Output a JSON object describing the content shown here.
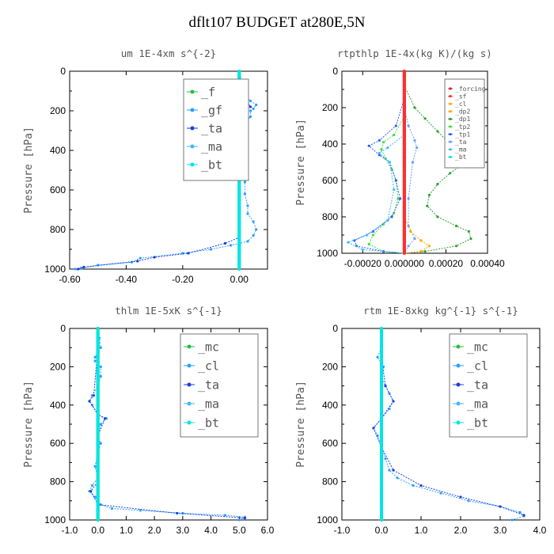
{
  "title": "dflt107  BUDGET at280E,5N",
  "chart_data": [
    {
      "type": "line",
      "title": "um  1E-4xm s^{-2}",
      "ylabel": "Pressure [hPa]",
      "xlim": [
        -0.6,
        0.1
      ],
      "ylim": [
        1000,
        0
      ],
      "xticks": [
        -0.6,
        -0.4,
        -0.2,
        0.0
      ],
      "xtick_labels": [
        "-0.60",
        "-0.40",
        "-0.20",
        "0.00"
      ],
      "yticks": [
        0,
        200,
        400,
        600,
        800,
        1000
      ],
      "ytick_labels": [
        "0",
        "200",
        "400",
        "600",
        "800",
        "1000"
      ],
      "legend": [
        "_f",
        "_gf",
        "_ta",
        "_ma",
        "_bt"
      ],
      "legend_size": "large",
      "series": [
        {
          "name": "_gf",
          "color": "#2aa0ff",
          "points": [
            [
              0,
              0
            ],
            [
              0.01,
              60
            ],
            [
              0.02,
              130
            ],
            [
              0.04,
              150
            ],
            [
              0.06,
              170
            ],
            [
              0.05,
              190
            ],
            [
              0.04,
              200
            ],
            [
              0.04,
              230
            ],
            [
              0.02,
              260
            ],
            [
              0.01,
              300
            ],
            [
              0.01,
              350
            ],
            [
              0.0,
              400
            ],
            [
              0.01,
              450
            ],
            [
              0.01,
              500
            ],
            [
              0.02,
              560
            ],
            [
              0.02,
              620
            ],
            [
              0.03,
              680
            ],
            [
              0.03,
              720
            ],
            [
              0.05,
              760
            ],
            [
              0.06,
              800
            ],
            [
              0.05,
              830
            ],
            [
              0.03,
              860
            ],
            [
              -0.03,
              880
            ],
            [
              -0.1,
              900
            ],
            [
              -0.2,
              920
            ],
            [
              -0.35,
              945
            ],
            [
              -0.38,
              965
            ],
            [
              -0.5,
              980
            ],
            [
              -0.56,
              995
            ],
            [
              -0.58,
              1000
            ]
          ]
        },
        {
          "name": "_ta",
          "color": "#1a3de0",
          "points": [
            [
              0,
              0
            ],
            [
              0.0,
              80
            ],
            [
              0.01,
              120
            ],
            [
              0.03,
              160
            ],
            [
              0.04,
              180
            ],
            [
              0.0,
              220
            ],
            [
              0.0,
              300
            ],
            [
              0.0,
              600
            ],
            [
              0.0,
              840
            ],
            [
              -0.05,
              870
            ],
            [
              -0.18,
              920
            ],
            [
              -0.3,
              940
            ],
            [
              -0.36,
              960
            ],
            [
              -0.55,
              990
            ],
            [
              -0.57,
              1000
            ]
          ]
        },
        {
          "name": "_f",
          "color": "#22c040",
          "points": [
            [
              0,
              0
            ],
            [
              0,
              1000
            ]
          ]
        },
        {
          "name": "_bt",
          "color": "#00e5e5",
          "points": [
            [
              0,
              0
            ],
            [
              0,
              1000
            ]
          ]
        }
      ]
    },
    {
      "type": "line",
      "title": "rtpthlp  1E-4x(kg K)/(kg s)",
      "ylabel": "Pressure [hPa]",
      "xlim": [
        -0.0003,
        0.0004
      ],
      "ylim": [
        1000,
        0
      ],
      "xticks": [
        -0.0002,
        0.0,
        0.0002,
        0.0004
      ],
      "xtick_labels": [
        "-0.00020",
        "0.000000",
        "0.00020",
        "0.00040"
      ],
      "yticks": [
        0,
        200,
        400,
        600,
        800,
        1000
      ],
      "ytick_labels": [
        "0",
        "200",
        "400",
        "600",
        "800",
        "1000"
      ],
      "legend": [
        "_forcing",
        "_sf",
        "_cl",
        "_dp2",
        "_dp1",
        "_tp2",
        "_tp1",
        "_ta",
        "_ma",
        "_bt"
      ],
      "legend_size": "small",
      "series": [
        {
          "name": "_dp1",
          "color": "#2fa02f",
          "points": [
            [
              0,
              80
            ],
            [
              5e-05,
              200
            ],
            [
              0.0001,
              260
            ],
            [
              0.00016,
              330
            ],
            [
              0.00022,
              400
            ],
            [
              0.00026,
              460
            ],
            [
              0.00027,
              520
            ],
            [
              0.00022,
              560
            ],
            [
              0.00016,
              620
            ],
            [
              0.00012,
              680
            ],
            [
              0.00011,
              740
            ],
            [
              0.00016,
              800
            ],
            [
              0.00025,
              850
            ],
            [
              0.00031,
              880
            ],
            [
              0.00032,
              920
            ],
            [
              0.00025,
              960
            ],
            [
              0.0001,
              990
            ],
            [
              0.0,
              1000
            ]
          ]
        },
        {
          "name": "_tp2",
          "color": "#44dd44",
          "points": [
            [
              0,
              250
            ],
            [
              -5e-05,
              350
            ],
            [
              -0.0001,
              390
            ],
            [
              -0.00011,
              430
            ],
            [
              -9e-05,
              480
            ],
            [
              -6e-05,
              540
            ],
            [
              -4e-05,
              600
            ],
            [
              -3e-05,
              700
            ],
            [
              -5e-05,
              780
            ],
            [
              -0.0001,
              840
            ],
            [
              -0.00015,
              900
            ],
            [
              -0.00017,
              950
            ],
            [
              -0.0001,
              990
            ],
            [
              0.0,
              1000
            ]
          ]
        },
        {
          "name": "_tp1",
          "color": "#2a60ff",
          "points": [
            [
              0,
              150
            ],
            [
              -4e-05,
              300
            ],
            [
              -0.00012,
              380
            ],
            [
              -0.00017,
              410
            ],
            [
              -0.00012,
              460
            ],
            [
              -7e-05,
              500
            ],
            [
              -4e-05,
              600
            ],
            [
              -2e-05,
              700
            ],
            [
              -6e-05,
              800
            ],
            [
              -0.00015,
              880
            ],
            [
              -0.00024,
              930
            ],
            [
              -0.00023,
              960
            ],
            [
              -0.0001,
              990
            ],
            [
              0.0,
              1000
            ]
          ]
        },
        {
          "name": "_ta",
          "color": "#66a0ff",
          "points": [
            [
              0,
              200
            ],
            [
              2e-05,
              300
            ],
            [
              5e-05,
              380
            ],
            [
              6e-05,
              420
            ],
            [
              4e-05,
              500
            ],
            [
              2e-05,
              700
            ],
            [
              2e-05,
              850
            ],
            [
              5e-05,
              920
            ],
            [
              2e-05,
              960
            ],
            [
              0.0,
              1000
            ]
          ]
        },
        {
          "name": "_ma",
          "color": "#40b8ff",
          "points": [
            [
              0,
              350
            ],
            [
              -8e-05,
              420
            ],
            [
              -0.00012,
              450
            ],
            [
              -7e-05,
              500
            ],
            [
              -5e-05,
              650
            ],
            [
              -8e-05,
              820
            ],
            [
              -0.00018,
              900
            ],
            [
              -0.00027,
              940
            ],
            [
              -0.0002,
              980
            ],
            [
              0.0,
              1000
            ]
          ]
        },
        {
          "name": "_cl",
          "color": "#ffa500",
          "points": [
            [
              0,
              800
            ],
            [
              3e-05,
              880
            ],
            [
              8e-05,
              930
            ],
            [
              0.00012,
              960
            ],
            [
              8e-05,
              990
            ],
            [
              0.0,
              1000
            ]
          ]
        },
        {
          "name": "_forcing",
          "color": "#dd2020",
          "points": [
            [
              0,
              0
            ],
            [
              0,
              1000
            ]
          ]
        },
        {
          "name": "_sf",
          "color": "#ff3030",
          "points": [
            [
              0,
              0
            ],
            [
              0,
              1000
            ]
          ]
        }
      ]
    },
    {
      "type": "line",
      "title": "thlm  1E-5xK s^{-1}",
      "ylabel": "Pressure [hPa]",
      "xlim": [
        -1.0,
        6.0
      ],
      "ylim": [
        1000,
        0
      ],
      "xticks": [
        -1,
        0,
        1,
        2,
        3,
        4,
        5,
        6
      ],
      "xtick_labels": [
        "-1.0",
        "0.0",
        "1.0",
        "2.0",
        "3.0",
        "4.0",
        "5.0",
        "6.0"
      ],
      "yticks": [
        0,
        200,
        400,
        600,
        800,
        1000
      ],
      "ytick_labels": [
        "0",
        "200",
        "400",
        "600",
        "800",
        "1000"
      ],
      "legend": [
        "_mc",
        "_cl",
        "_ta",
        "_ma",
        "_bt"
      ],
      "legend_size": "large",
      "series": [
        {
          "name": "_cl",
          "color": "#2aa0ff",
          "points": [
            [
              0,
              0
            ],
            [
              0.05,
              50
            ],
            [
              0.1,
              100
            ],
            [
              -0.1,
              150
            ],
            [
              -0.1,
              170
            ],
            [
              0.1,
              200
            ],
            [
              0.1,
              250
            ],
            [
              0,
              300
            ],
            [
              -0.2,
              350
            ],
            [
              -0.3,
              380
            ],
            [
              -0.2,
              400
            ],
            [
              0.0,
              450
            ],
            [
              0.3,
              470
            ],
            [
              0.1,
              500
            ],
            [
              0.0,
              560
            ],
            [
              0.1,
              600
            ],
            [
              0.0,
              650
            ],
            [
              -0.1,
              720
            ],
            [
              0.0,
              780
            ],
            [
              -0.2,
              820
            ],
            [
              -0.3,
              850
            ],
            [
              -0.1,
              880
            ],
            [
              0.1,
              920
            ],
            [
              0.5,
              940
            ],
            [
              1.5,
              950
            ],
            [
              3,
              965
            ],
            [
              4.5,
              975
            ],
            [
              5.2,
              985
            ],
            [
              5.0,
              1000
            ]
          ]
        },
        {
          "name": "_ta",
          "color": "#1a3de0",
          "points": [
            [
              0,
              0
            ],
            [
              0.0,
              100
            ],
            [
              -0.15,
              350
            ],
            [
              -0.3,
              380
            ],
            [
              0.0,
              450
            ],
            [
              0.25,
              470
            ],
            [
              0.0,
              560
            ],
            [
              0.0,
              800
            ],
            [
              -0.25,
              850
            ],
            [
              0.0,
              920
            ],
            [
              2.8,
              965
            ],
            [
              5.2,
              990
            ]
          ]
        },
        {
          "name": "_mc",
          "color": "#22c040",
          "points": [
            [
              0,
              0
            ],
            [
              0,
              1000
            ]
          ]
        },
        {
          "name": "_bt",
          "color": "#00e5e5",
          "points": [
            [
              0,
              0
            ],
            [
              0,
              1000
            ]
          ]
        }
      ]
    },
    {
      "type": "line",
      "title": "rtm  1E-8xkg kg^{-1} s^{-1}",
      "ylabel": "Pressure [hPa]",
      "xlim": [
        -1.0,
        4.0
      ],
      "ylim": [
        1000,
        0
      ],
      "xticks": [
        -1,
        0,
        1,
        2,
        3,
        4
      ],
      "xtick_labels": [
        "-1.0",
        "0.0",
        "1.0",
        "2.0",
        "3.0",
        "4.0"
      ],
      "yticks": [
        0,
        200,
        400,
        600,
        800,
        1000
      ],
      "ytick_labels": [
        "0",
        "200",
        "400",
        "600",
        "800",
        "1000"
      ],
      "legend": [
        "_mc",
        "_cl",
        "_ta",
        "_ma",
        "_bt"
      ],
      "legend_size": "large",
      "series": [
        {
          "name": "_cl",
          "color": "#2aa0ff",
          "points": [
            [
              0,
              0
            ],
            [
              0.0,
              100
            ],
            [
              -0.1,
              150
            ],
            [
              0.05,
              200
            ],
            [
              0.0,
              260
            ],
            [
              0.1,
              300
            ],
            [
              0.2,
              340
            ],
            [
              0.3,
              380
            ],
            [
              0.2,
              420
            ],
            [
              0.0,
              470
            ],
            [
              -0.2,
              520
            ],
            [
              -0.1,
              560
            ],
            [
              0.0,
              620
            ],
            [
              0.1,
              680
            ],
            [
              0.2,
              740
            ],
            [
              0.4,
              780
            ],
            [
              0.8,
              820
            ],
            [
              1.5,
              860
            ],
            [
              2.2,
              900
            ],
            [
              3.0,
              930
            ],
            [
              3.5,
              960
            ],
            [
              3.6,
              980
            ],
            [
              3.3,
              1000
            ]
          ]
        },
        {
          "name": "_ta",
          "color": "#1a3de0",
          "points": [
            [
              0,
              0
            ],
            [
              0.0,
              150
            ],
            [
              0.1,
              300
            ],
            [
              0.3,
              380
            ],
            [
              0.0,
              470
            ],
            [
              -0.2,
              520
            ],
            [
              0.0,
              620
            ],
            [
              0.3,
              740
            ],
            [
              1.0,
              820
            ],
            [
              2.0,
              880
            ],
            [
              3.0,
              930
            ],
            [
              3.6,
              975
            ]
          ]
        },
        {
          "name": "_mc",
          "color": "#22c040",
          "points": [
            [
              0,
              0
            ],
            [
              0,
              1000
            ]
          ]
        },
        {
          "name": "_bt",
          "color": "#00e5e5",
          "points": [
            [
              0,
              0
            ],
            [
              0,
              1000
            ]
          ]
        }
      ]
    }
  ]
}
